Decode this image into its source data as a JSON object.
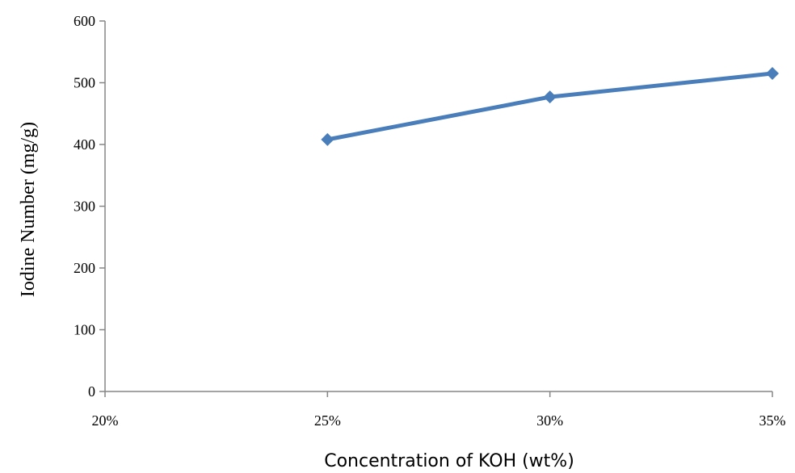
{
  "chart_data": {
    "type": "line",
    "title": "",
    "xlabel": "Concentration of KOH (wt%)",
    "ylabel": "Iodine Number (mg/g)",
    "categories": [
      "20%",
      "25%",
      "30%",
      "35%"
    ],
    "series": [
      {
        "values": [
          null,
          408,
          477,
          515
        ],
        "color": "#4a7ebb",
        "marker": "diamond"
      }
    ],
    "ylim": [
      0,
      600
    ],
    "yticks": [
      0,
      100,
      200,
      300,
      400,
      500,
      600
    ],
    "grid": false,
    "legend": "none"
  }
}
